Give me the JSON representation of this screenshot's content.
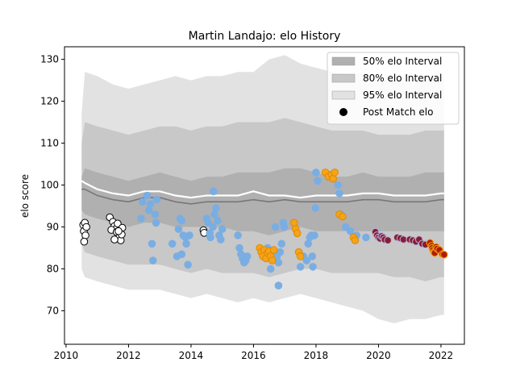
{
  "chart_data": {
    "type": "scatter",
    "title": "Martin Landajo: elo History",
    "xlabel": "",
    "ylabel": "elo score",
    "xlim": [
      2009.95,
      2022.75
    ],
    "ylim": [
      62,
      133
    ],
    "xticks": [
      2010,
      2012,
      2014,
      2016,
      2018,
      2020,
      2022
    ],
    "yticks": [
      70,
      80,
      90,
      100,
      110,
      120,
      130
    ],
    "grid": false,
    "legend": {
      "placement": "top-right",
      "entries": [
        {
          "label": "50% elo Interval",
          "color": "#b0b0b0",
          "kind": "patch"
        },
        {
          "label": "80% elo Interval",
          "color": "#c8c8c8",
          "kind": "patch"
        },
        {
          "label": "95% elo Interval",
          "color": "#e2e2e2",
          "kind": "patch"
        },
        {
          "label": "Post Match elo",
          "color": "#000000",
          "kind": "marker"
        }
      ]
    },
    "bands": {
      "x": [
        2010.5,
        2010.6,
        2011.0,
        2011.5,
        2012.0,
        2012.5,
        2013.0,
        2013.5,
        2014.0,
        2014.5,
        2015.0,
        2015.5,
        2016.0,
        2016.5,
        2017.0,
        2017.5,
        2018.0,
        2018.5,
        2019.0,
        2019.5,
        2020.0,
        2020.5,
        2021.0,
        2021.5,
        2022.0,
        2022.1
      ],
      "p95_upper": [
        117,
        127,
        126,
        124,
        123,
        124,
        125,
        126,
        125,
        126,
        126,
        127,
        127,
        130,
        131,
        129,
        128,
        127,
        126,
        127,
        126,
        125,
        125,
        126,
        126,
        126
      ],
      "p80_upper": [
        110,
        115,
        114,
        113,
        112,
        113,
        114,
        114,
        113,
        114,
        114,
        115,
        115,
        115,
        116,
        115,
        114,
        113,
        113,
        113,
        112,
        112,
        112,
        113,
        113,
        113
      ],
      "p50_upper": [
        102,
        104,
        103,
        102,
        101,
        102,
        103,
        102,
        101,
        102,
        102,
        103,
        103,
        103,
        104,
        104,
        103,
        102,
        102,
        103,
        102,
        102,
        102,
        103,
        103,
        103
      ],
      "median": [
        99,
        99,
        97.5,
        96.5,
        96,
        97,
        97,
        96,
        95.5,
        96,
        96,
        96,
        96.5,
        96,
        96.5,
        96,
        96,
        96,
        96,
        96.5,
        96.5,
        96,
        96,
        96,
        96.5,
        96.5
      ],
      "mean": [
        101,
        100.5,
        99,
        98,
        97.5,
        98.5,
        98.5,
        97.5,
        97,
        97.5,
        97.5,
        97.5,
        98.5,
        97.5,
        97.5,
        97,
        97.5,
        97.5,
        97.5,
        98,
        98,
        97.5,
        97.5,
        97.5,
        98,
        98
      ],
      "p50_lower": [
        94,
        93,
        92,
        91,
        90,
        91,
        91,
        90,
        90,
        90,
        90,
        89,
        89,
        88,
        89,
        90,
        89,
        89,
        89,
        89,
        89,
        89,
        89,
        89,
        89,
        89
      ],
      "p80_lower": [
        86,
        84,
        83,
        82,
        81,
        81,
        81,
        80,
        79,
        80,
        79,
        79,
        79,
        78,
        79,
        80,
        80,
        79,
        79,
        79,
        79,
        78,
        78,
        77,
        78,
        78
      ],
      "p95_lower": [
        80,
        78,
        77,
        76,
        75,
        75,
        75,
        74,
        73,
        74,
        73,
        72,
        73,
        72,
        73,
        74,
        73,
        72,
        71,
        70,
        68,
        67,
        68,
        68,
        69,
        69
      ]
    },
    "series": [
      {
        "name": "Post Match elo",
        "color": "#ffffff",
        "edge": "#000000",
        "points": [
          [
            2010.55,
            90.5
          ],
          [
            2010.6,
            91.0
          ],
          [
            2010.57,
            89.0
          ],
          [
            2010.62,
            88.0
          ],
          [
            2010.58,
            86.5
          ],
          [
            2010.65,
            90.0
          ],
          [
            2011.4,
            92.3
          ],
          [
            2011.5,
            91.2
          ],
          [
            2011.55,
            90.2
          ],
          [
            2011.6,
            89.5
          ],
          [
            2011.45,
            89.3
          ],
          [
            2011.62,
            88.8
          ],
          [
            2011.7,
            87.5
          ],
          [
            2011.75,
            86.8
          ],
          [
            2011.55,
            87.0
          ],
          [
            2011.65,
            90.8
          ],
          [
            2011.8,
            89.8
          ],
          [
            2011.78,
            88.2
          ],
          [
            2011.68,
            89.0
          ],
          [
            2014.4,
            89.2
          ],
          [
            2014.42,
            88.6
          ]
        ]
      },
      {
        "name": "",
        "color": "#7aaee3",
        "edge": "#7aaee3",
        "points": [
          [
            2012.4,
            92.0
          ],
          [
            2012.45,
            96.0
          ],
          [
            2012.6,
            97.5
          ],
          [
            2012.65,
            94.0
          ],
          [
            2012.7,
            95.5
          ],
          [
            2012.75,
            86.0
          ],
          [
            2012.78,
            82.0
          ],
          [
            2012.9,
            96.5
          ],
          [
            2012.85,
            93.0
          ],
          [
            2012.88,
            91.0
          ],
          [
            2013.4,
            86.0
          ],
          [
            2013.6,
            89.5
          ],
          [
            2013.65,
            92.0
          ],
          [
            2013.7,
            91.5
          ],
          [
            2013.55,
            83.0
          ],
          [
            2013.7,
            83.5
          ],
          [
            2013.75,
            88.0
          ],
          [
            2013.82,
            87.5
          ],
          [
            2013.85,
            86.0
          ],
          [
            2013.9,
            81.0
          ],
          [
            2013.95,
            88.0
          ],
          [
            2014.5,
            92.0
          ],
          [
            2014.55,
            91.0
          ],
          [
            2014.6,
            88.5
          ],
          [
            2014.62,
            87.5
          ],
          [
            2014.7,
            90.0
          ],
          [
            2014.75,
            93.0
          ],
          [
            2014.8,
            94.5
          ],
          [
            2014.85,
            91.5
          ],
          [
            2014.72,
            98.5
          ],
          [
            2014.9,
            88.0
          ],
          [
            2014.95,
            87.0
          ],
          [
            2015.0,
            89.5
          ],
          [
            2015.5,
            88.0
          ],
          [
            2015.55,
            85.0
          ],
          [
            2015.6,
            83.5
          ],
          [
            2015.65,
            82.5
          ],
          [
            2015.7,
            81.5
          ],
          [
            2015.75,
            82.0
          ],
          [
            2015.8,
            83.0
          ],
          [
            2016.45,
            85.0
          ],
          [
            2016.5,
            83.5
          ],
          [
            2016.55,
            80.0
          ],
          [
            2016.7,
            90.0
          ],
          [
            2016.75,
            83.0
          ],
          [
            2016.8,
            81.5
          ],
          [
            2016.85,
            84.0
          ],
          [
            2016.9,
            86.0
          ],
          [
            2016.95,
            91.0
          ],
          [
            2016.98,
            90.0
          ],
          [
            2016.8,
            76.0
          ],
          [
            2017.5,
            80.5
          ],
          [
            2017.6,
            83.0
          ],
          [
            2017.7,
            82.0
          ],
          [
            2017.75,
            86.0
          ],
          [
            2017.8,
            87.5
          ],
          [
            2017.85,
            88.0
          ],
          [
            2017.88,
            83.0
          ],
          [
            2017.9,
            80.5
          ],
          [
            2017.95,
            88.0
          ],
          [
            2017.98,
            94.5
          ],
          [
            2018.0,
            103.0
          ],
          [
            2018.05,
            101.0
          ],
          [
            2018.4,
            102.0
          ],
          [
            2018.5,
            102.5
          ],
          [
            2018.7,
            100.0
          ],
          [
            2018.75,
            98.0
          ],
          [
            2018.8,
            93.0
          ],
          [
            2018.95,
            90.0
          ],
          [
            2019.1,
            89.0
          ],
          [
            2019.3,
            88.0
          ],
          [
            2019.6,
            87.5
          ]
        ]
      },
      {
        "name": "",
        "color": "#f5a31a",
        "edge": "#e08a00",
        "points": [
          [
            2016.2,
            85.0
          ],
          [
            2016.25,
            84.0
          ],
          [
            2016.3,
            83.0
          ],
          [
            2016.35,
            84.5
          ],
          [
            2016.4,
            82.5
          ],
          [
            2016.45,
            83.8
          ],
          [
            2016.5,
            84.2
          ],
          [
            2016.55,
            83.0
          ],
          [
            2016.6,
            82.0
          ],
          [
            2016.65,
            84.5
          ],
          [
            2017.3,
            91.0
          ],
          [
            2017.35,
            89.5
          ],
          [
            2017.4,
            88.5
          ],
          [
            2017.45,
            84.0
          ],
          [
            2017.5,
            83.0
          ],
          [
            2018.3,
            103.0
          ],
          [
            2018.4,
            102.0
          ],
          [
            2018.5,
            102.5
          ],
          [
            2018.55,
            101.5
          ],
          [
            2018.6,
            103.0
          ],
          [
            2018.75,
            93.0
          ],
          [
            2018.85,
            92.5
          ],
          [
            2019.2,
            87.5
          ],
          [
            2019.25,
            86.8
          ]
        ]
      },
      {
        "name": "",
        "color": "#8a1c2b",
        "edge": "#b3b3e6",
        "points": [
          [
            2019.9,
            88.8
          ],
          [
            2019.95,
            88.0
          ],
          [
            2020.0,
            87.5
          ],
          [
            2020.05,
            87.2
          ],
          [
            2020.1,
            87.8
          ],
          [
            2020.15,
            87.5
          ],
          [
            2020.2,
            87.0
          ],
          [
            2020.3,
            86.8
          ],
          [
            2020.6,
            87.5
          ],
          [
            2020.7,
            87.3
          ],
          [
            2020.8,
            87.0
          ],
          [
            2021.0,
            87.0
          ],
          [
            2021.1,
            86.8
          ],
          [
            2021.2,
            86.5
          ],
          [
            2021.3,
            87.0
          ],
          [
            2021.4,
            86.0
          ],
          [
            2021.5,
            85.8
          ]
        ]
      },
      {
        "name": "",
        "color": "#b01e00",
        "edge": "#f5a31a",
        "points": [
          [
            2021.65,
            86.2
          ],
          [
            2021.7,
            85.5
          ],
          [
            2021.72,
            85.0
          ],
          [
            2021.75,
            84.5
          ],
          [
            2021.78,
            84.0
          ],
          [
            2021.8,
            83.8
          ],
          [
            2021.85,
            85.2
          ],
          [
            2021.88,
            84.8
          ],
          [
            2021.95,
            84.5
          ],
          [
            2022.05,
            83.5
          ],
          [
            2022.1,
            83.4
          ]
        ]
      }
    ]
  }
}
